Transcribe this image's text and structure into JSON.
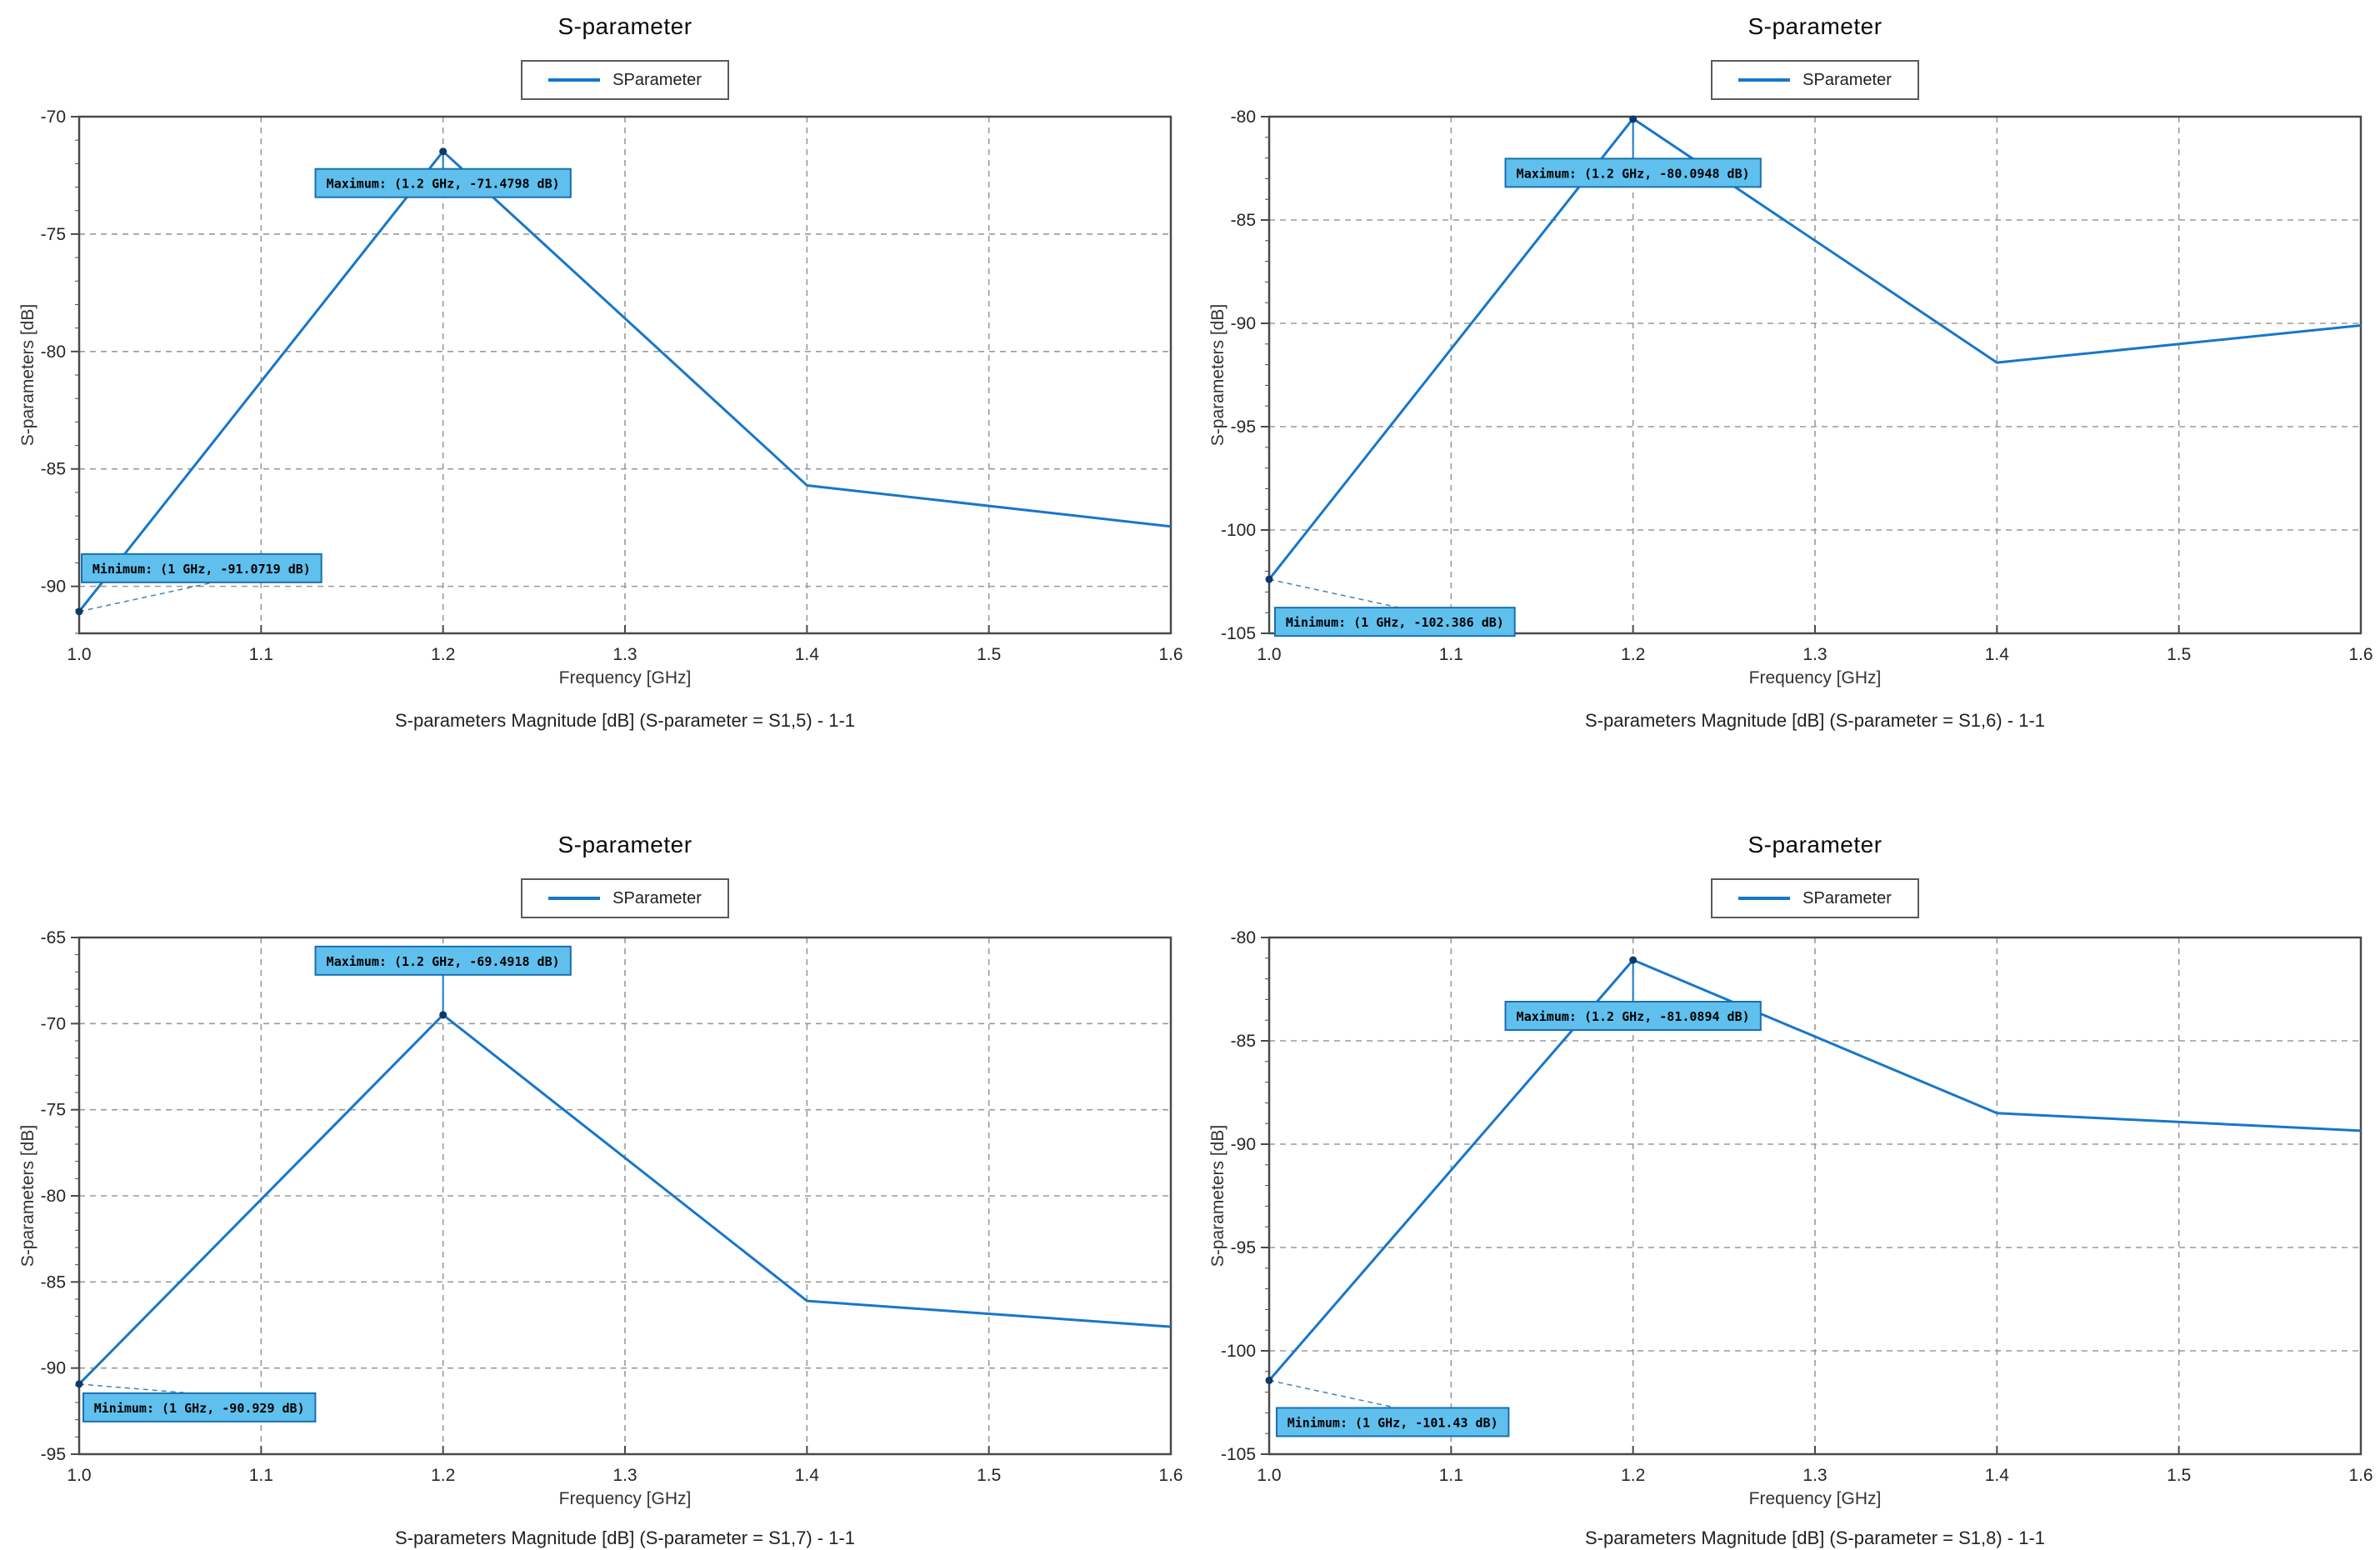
{
  "colors": {
    "line": "#1777c9",
    "marker": "#0d3a66",
    "annotation_fill": "#5fc0ee",
    "annotation_border": "#1a6fb0",
    "annotation_text": "#000000",
    "grid": "#9a9a9a",
    "axis_border": "#4a4a4a",
    "tick_text": "#262626"
  },
  "chart_data": [
    {
      "type": "line",
      "title": "S-parameter",
      "legend_label": "SParameter",
      "xlabel": "Frequency [GHz]",
      "ylabel": "S-parameters [dB]",
      "caption": "S-parameters Magnitude [dB] (S-parameter = S1,5) - 1-1",
      "x": [
        1.0,
        1.2,
        1.4,
        1.6
      ],
      "y": [
        -91.0719,
        -71.4798,
        -85.7,
        -87.45
      ],
      "xlim": [
        1.0,
        1.6
      ],
      "ylim": [
        -92,
        -70
      ],
      "xticks": [
        1.0,
        1.1,
        1.2,
        1.3,
        1.4,
        1.5,
        1.6
      ],
      "yticks": [
        -70,
        -75,
        -80,
        -85,
        -90
      ],
      "grid": true,
      "legend_position": "top-center",
      "annotations": {
        "maximum": {
          "text": "Maximum: (1.2 GHz, -71.4798 dB)",
          "point": [
            1.2,
            -71.4798
          ],
          "box_dy": 21
        },
        "minimum": {
          "text": "Minimum: (1 GHz, -91.0719 dB)",
          "point": [
            1.0,
            -91.0719
          ],
          "box_dx": 3,
          "box_dy": -69
        }
      }
    },
    {
      "type": "line",
      "title": "S-parameter",
      "legend_label": "SParameter",
      "xlabel": "Frequency [GHz]",
      "ylabel": "S-parameters [dB]",
      "caption": "S-parameters Magnitude [dB] (S-parameter = S1,6) - 1-1",
      "x": [
        1.0,
        1.2,
        1.4,
        1.6
      ],
      "y": [
        -102.386,
        -80.0948,
        -91.9,
        -90.1
      ],
      "xlim": [
        1.0,
        1.6
      ],
      "ylim": [
        -105,
        -80
      ],
      "xticks": [
        1.0,
        1.1,
        1.2,
        1.3,
        1.4,
        1.5,
        1.6
      ],
      "yticks": [
        -80,
        -85,
        -90,
        -95,
        -100,
        -105
      ],
      "grid": true,
      "legend_position": "top-center",
      "annotations": {
        "maximum": {
          "text": "Maximum: (1.2 GHz, -80.0948 dB)",
          "point": [
            1.2,
            -80.0948
          ],
          "box_dy": 48
        },
        "minimum": {
          "text": "Minimum: (1 GHz, -102.386 dB)",
          "point": [
            1.0,
            -102.386
          ],
          "box_dx": 7,
          "box_dy": 34
        }
      }
    },
    {
      "type": "line",
      "title": "S-parameter",
      "legend_label": "SParameter",
      "xlabel": "Frequency [GHz]",
      "ylabel": "S-parameters [dB]",
      "caption": "S-parameters Magnitude [dB] (S-parameter = S1,7) - 1-1",
      "x": [
        1.0,
        1.2,
        1.4,
        1.6
      ],
      "y": [
        -90.929,
        -69.4918,
        -86.1,
        -87.6
      ],
      "xlim": [
        1.0,
        1.6
      ],
      "ylim": [
        -95,
        -65
      ],
      "xticks": [
        1.0,
        1.1,
        1.2,
        1.3,
        1.4,
        1.5,
        1.6
      ],
      "yticks": [
        -65,
        -70,
        -75,
        -80,
        -85,
        -90,
        -95
      ],
      "grid": true,
      "legend_position": "top-center",
      "annotations": {
        "maximum": {
          "text": "Maximum: (1.2 GHz, -69.4918 dB)",
          "point": [
            1.2,
            -69.4918
          ],
          "box_dy": -48
        },
        "minimum": {
          "text": "Minimum: (1 GHz, -90.929 dB)",
          "point": [
            1.0,
            -90.929
          ],
          "box_dx": 5,
          "box_dy": 11
        }
      }
    },
    {
      "type": "line",
      "title": "S-parameter",
      "legend_label": "SParameter",
      "xlabel": "Frequency [GHz]",
      "ylabel": "S-parameters [dB]",
      "caption": "S-parameters Magnitude [dB] (S-parameter = S1,8) - 1-1",
      "x": [
        1.0,
        1.2,
        1.4,
        1.6
      ],
      "y": [
        -101.43,
        -81.0894,
        -88.5,
        -89.35
      ],
      "xlim": [
        1.0,
        1.6
      ],
      "ylim": [
        -105,
        -80
      ],
      "xticks": [
        1.0,
        1.1,
        1.2,
        1.3,
        1.4,
        1.5,
        1.6
      ],
      "yticks": [
        -80,
        -85,
        -90,
        -95,
        -100,
        -105
      ],
      "grid": true,
      "legend_position": "top-center",
      "annotations": {
        "maximum": {
          "text": "Maximum: (1.2 GHz, -81.0894 dB)",
          "point": [
            1.2,
            -81.0894
          ],
          "box_dy": 50
        },
        "minimum": {
          "text": "Minimum: (1 GHz, -101.43 dB)",
          "point": [
            1.0,
            -101.43
          ],
          "box_dx": 9,
          "box_dy": 33
        }
      }
    }
  ]
}
